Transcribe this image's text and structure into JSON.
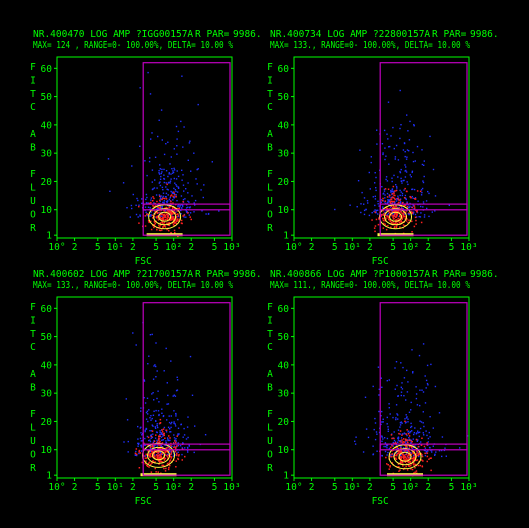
{
  "palette": {
    "axis": "#00ff00",
    "gate": "#c000c0",
    "low": "#2030ff",
    "mid": "#ff2020",
    "high": "#ffff40",
    "background": "#000000"
  },
  "chart_data": [
    {
      "type": "scatter",
      "header1": "NR.400470 LOG AMP ?IGG00157A",
      "header1b": "R PAR=",
      "header1c": "9986.",
      "header2": "MAX=    124 , RANGE=0- 100.00%, DELTA= 10.00 %",
      "xlabel": "FSC",
      "ylabel": [
        "F",
        "I",
        "T",
        "C",
        "",
        "A",
        "B",
        "",
        "F",
        "L",
        "U",
        "O",
        "R"
      ],
      "xticks": [
        "10°",
        "2",
        "5",
        "10¹",
        "2",
        "5",
        "10²",
        "2",
        "5",
        "10³"
      ],
      "yticks": [
        "60",
        "50",
        "40",
        "30",
        "20",
        "10",
        "1"
      ],
      "xlim": [
        1,
        1000
      ],
      "ylim": [
        0,
        64
      ],
      "x_scale": "log",
      "y_scale": "linear",
      "gates": [
        {
          "x": [
            30,
            1000
          ],
          "y": [
            10,
            62
          ]
        },
        {
          "x": [
            30,
            1000
          ],
          "y": [
            1,
            12
          ]
        }
      ],
      "population_center": {
        "x": 70,
        "y": 7.5
      }
    },
    {
      "type": "scatter",
      "header1": "NR.400734 LOG AMP ?22800157A",
      "header1b": "R PAR=",
      "header1c": "9986.",
      "header2": "MAX=   133., RANGE=0- 100.00%, DELTA= 10.00 %",
      "xlabel": "FSC",
      "ylabel": [
        "F",
        "I",
        "T",
        "C",
        "",
        "A",
        "B",
        "",
        "F",
        "L",
        "U",
        "O",
        "R"
      ],
      "xticks": [
        "10°",
        "2",
        "5",
        "10¹",
        "2",
        "5",
        "10²",
        "2",
        "5",
        "10³"
      ],
      "yticks": [
        "60",
        "50",
        "40",
        "30",
        "20",
        "10",
        "1"
      ],
      "xlim": [
        1,
        1000
      ],
      "ylim": [
        0,
        64
      ],
      "x_scale": "log",
      "y_scale": "linear",
      "gates": [
        {
          "x": [
            30,
            1000
          ],
          "y": [
            10,
            62
          ]
        },
        {
          "x": [
            30,
            1000
          ],
          "y": [
            1,
            12
          ]
        }
      ],
      "population_center": {
        "x": 55,
        "y": 7.5
      }
    },
    {
      "type": "scatter",
      "header1": "NR.400602 LOG AMP ?21700157A",
      "header1b": "R PAR=",
      "header1c": "9986.",
      "header2": "MAX=   133., RANGE=0- 100.00%, DELTA= 10.00 %",
      "xlabel": "FSC",
      "ylabel": [
        "F",
        "I",
        "T",
        "C",
        "",
        "A",
        "B",
        "",
        "F",
        "L",
        "U",
        "O",
        "R"
      ],
      "xticks": [
        "10°",
        "2",
        "5",
        "10¹",
        "2",
        "5",
        "10²",
        "2",
        "5",
        "10³"
      ],
      "yticks": [
        "60",
        "50",
        "40",
        "30",
        "20",
        "10",
        "1"
      ],
      "xlim": [
        1,
        1000
      ],
      "ylim": [
        0,
        64
      ],
      "x_scale": "log",
      "y_scale": "linear",
      "gates": [
        {
          "x": [
            30,
            1000
          ],
          "y": [
            10,
            62
          ]
        },
        {
          "x": [
            30,
            1000
          ],
          "y": [
            1,
            12
          ]
        }
      ],
      "population_center": {
        "x": 55,
        "y": 8
      }
    },
    {
      "type": "scatter",
      "header1": "NR.400866 LOG AMP ?P1000157A",
      "header1b": "R PAR=",
      "header1c": "9986.",
      "header2": "MAX=   111., RANGE=0- 100.00%, DELTA= 10.00 %",
      "xlabel": "FSC",
      "ylabel": [
        "F",
        "I",
        "T",
        "C",
        "",
        "A",
        "B",
        "",
        "F",
        "L",
        "U",
        "O",
        "R"
      ],
      "xticks": [
        "10°",
        "2",
        "5",
        "10¹",
        "2",
        "5",
        "10²",
        "2",
        "5",
        "10³"
      ],
      "yticks": [
        "60",
        "50",
        "40",
        "30",
        "20",
        "10",
        "1"
      ],
      "xlim": [
        1,
        1000
      ],
      "ylim": [
        0,
        64
      ],
      "x_scale": "log",
      "y_scale": "linear",
      "gates": [
        {
          "x": [
            30,
            1000
          ],
          "y": [
            10,
            62
          ]
        },
        {
          "x": [
            30,
            1000
          ],
          "y": [
            1,
            12
          ]
        }
      ],
      "population_center": {
        "x": 80,
        "y": 7.5
      }
    }
  ]
}
